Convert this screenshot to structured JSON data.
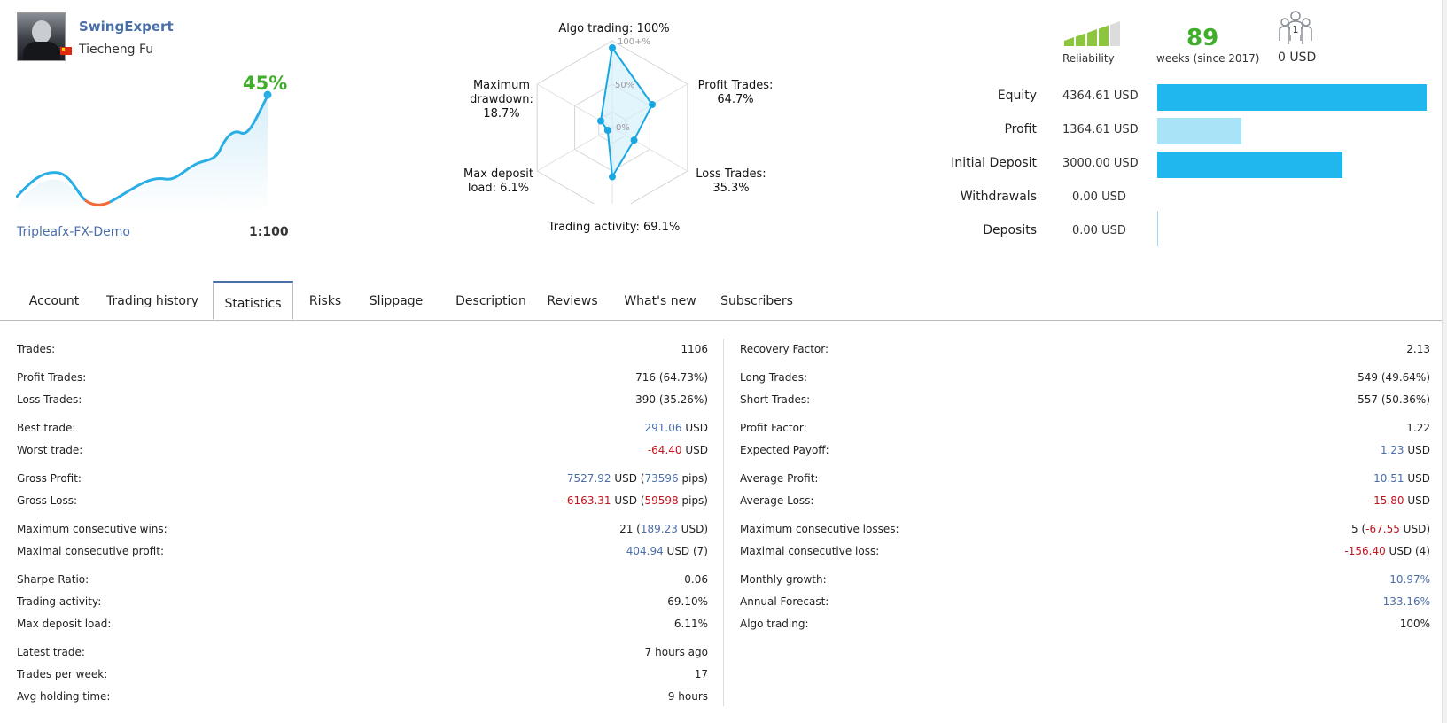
{
  "profile": {
    "name": "SwingExpert",
    "real_name": "Tiecheng Fu",
    "growth": "45%",
    "broker": "Tripleafx-FX-Demo",
    "leverage": "1:100",
    "flag_color": "#de2910"
  },
  "radar": {
    "algo": "Algo trading: 100%",
    "scale_100": "100+%",
    "scale_50": "50%",
    "scale_0": "0%",
    "profit_trades_1": "Profit Trades:",
    "profit_trades_2": "64.7%",
    "loss_trades_1": "Loss Trades:",
    "loss_trades_2": "35.3%",
    "activity": "Trading activity: 69.1%",
    "deposit_load_1": "Max deposit",
    "deposit_load_2": "load: 6.1%",
    "drawdown_1": "Maximum",
    "drawdown_2": "drawdown:",
    "drawdown_3": "18.7%",
    "values": {
      "algo": 100,
      "profit": 64.7,
      "loss": 35.3,
      "activity": 69.1,
      "deposit_load": 6.1,
      "drawdown": 18.7
    }
  },
  "summary": {
    "reliability_label": "Reliability",
    "weeks": "89",
    "weeks_label": "weeks (since 2017)",
    "subscribers_count": "1",
    "subscribers_funds": "0 USD",
    "reliability_level": 0.8
  },
  "balances": [
    {
      "label": "Equity",
      "value": "4364.61 USD",
      "amount": 4364.61,
      "color": "#20b6ee"
    },
    {
      "label": "Profit",
      "value": "1364.61 USD",
      "amount": 1364.61,
      "color": "#a9e3f8"
    },
    {
      "label": "Initial Deposit",
      "value": "3000.00 USD",
      "amount": 3000.0,
      "color": "#20b6ee"
    },
    {
      "label": "Withdrawals",
      "value": "0.00 USD",
      "amount": 0,
      "color": "#20b6ee"
    },
    {
      "label": "Deposits",
      "value": "0.00 USD",
      "amount": 0,
      "color": "#20b6ee"
    }
  ],
  "tabs": [
    "Account",
    "Trading history",
    "Statistics",
    "Risks",
    "Slippage",
    "Description",
    "Reviews",
    "What's new",
    "Subscribers"
  ],
  "active_tab": "Statistics",
  "stats_left": {
    "trades_l": "Trades:",
    "trades_v": "1106",
    "profit_trades_l": "Profit Trades:",
    "profit_trades_v": "716 (64.73%)",
    "loss_trades_l": "Loss Trades:",
    "loss_trades_v": "390 (35.26%)",
    "best_l": "Best trade:",
    "best_n": "291.06",
    "best_u": " USD",
    "worst_l": "Worst trade:",
    "worst_n": "-64.40",
    "worst_u": " USD",
    "gp_l": "Gross Profit:",
    "gp_n": "7527.92",
    "gp_m": " USD (",
    "gp_p": "73596",
    "gp_s": " pips)",
    "gl_l": "Gross Loss:",
    "gl_n": "-6163.31",
    "gl_m": " USD (",
    "gl_p": "59598",
    "gl_s": " pips)",
    "mcw_l": "Maximum consecutive wins:",
    "mcw_a": "21 (",
    "mcw_n": "189.23",
    "mcw_s": " USD)",
    "mcp_l": "Maximal consecutive profit:",
    "mcp_n": "404.94",
    "mcp_s": " USD (7)",
    "sharpe_l": "Sharpe Ratio:",
    "sharpe_v": "0.06",
    "activity_l": "Trading activity:",
    "activity_v": "69.10%",
    "mdl_l": "Max deposit load:",
    "mdl_v": "6.11%",
    "latest_l": "Latest trade:",
    "latest_v": "7 hours ago",
    "tpw_l": "Trades per week:",
    "tpw_v": "17",
    "aht_l": "Avg holding time:",
    "aht_v": "9 hours"
  },
  "stats_right": {
    "rf_l": "Recovery Factor:",
    "rf_v": "2.13",
    "long_l": "Long Trades:",
    "long_v": "549 (49.64%)",
    "short_l": "Short Trades:",
    "short_v": "557 (50.36%)",
    "pf_l": "Profit Factor:",
    "pf_v": "1.22",
    "ep_l": "Expected Payoff:",
    "ep_n": "1.23",
    "ep_u": " USD",
    "ap_l": "Average Profit:",
    "ap_n": "10.51",
    "ap_u": " USD",
    "al_l": "Average Loss:",
    "al_n": "-15.80",
    "al_u": " USD",
    "mcl_l": "Maximum consecutive losses:",
    "mcl_a": "5 (",
    "mcl_n": "-67.55",
    "mcl_s": " USD)",
    "mcloss_l": "Maximal consecutive loss:",
    "mcloss_n": "-156.40",
    "mcloss_s": " USD (4)",
    "mg_l": "Monthly growth:",
    "mg_v": "10.97%",
    "af_l": "Annual Forecast:",
    "af_v": "133.16%",
    "algo_l": "Algo trading:",
    "algo_v": "100%"
  }
}
